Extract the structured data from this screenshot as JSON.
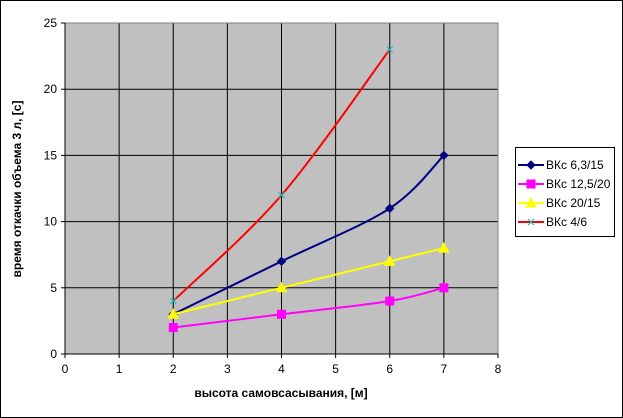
{
  "chart_data": {
    "type": "line",
    "title": "",
    "xlabel": "высота самовсасывания, [м]",
    "ylabel": "время откачки объема 3 л, [с]",
    "xlim": [
      0,
      8
    ],
    "ylim": [
      0,
      25
    ],
    "xticks": [
      "0",
      "1",
      "2",
      "3",
      "4",
      "5",
      "6",
      "7",
      "8"
    ],
    "yticks": [
      "0",
      "5",
      "10",
      "15",
      "20",
      "25"
    ],
    "grid": true,
    "plot_background": "#c0c0c0",
    "legend_position": "right",
    "series": [
      {
        "name": "ВКс 6,3/15",
        "color": "#000080",
        "marker": "diamond",
        "x": [
          2,
          4,
          6,
          7
        ],
        "y": [
          3,
          7,
          11,
          15
        ]
      },
      {
        "name": "ВКс 12,5/20",
        "color": "#ff00ff",
        "marker": "square",
        "x": [
          2,
          4,
          6,
          7
        ],
        "y": [
          2,
          3,
          4,
          5
        ]
      },
      {
        "name": "ВКс 20/15",
        "color": "#ffff00",
        "marker": "triangle",
        "x": [
          2,
          4,
          6,
          7
        ],
        "y": [
          3,
          5,
          7,
          8
        ]
      },
      {
        "name": "ВКс 4/6",
        "color": "#ff0000",
        "marker": "x",
        "x": [
          2,
          4,
          6
        ],
        "y": [
          4,
          12,
          23
        ]
      }
    ]
  }
}
